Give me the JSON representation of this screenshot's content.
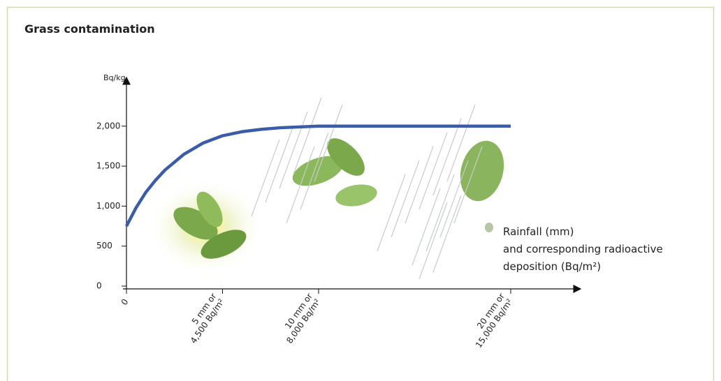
{
  "chart_data": {
    "type": "line",
    "title": "Grass contamination",
    "y_label": "Bq/kg",
    "x_label": [
      "Rainfall (mm)",
      "and corresponding radioactive",
      "deposition (Bq/m²)"
    ],
    "x": [
      0,
      0.5,
      1,
      1.5,
      2,
      3,
      4,
      5,
      6,
      7,
      8,
      10,
      20
    ],
    "series": [
      {
        "name": "Grass contamination",
        "color": "#3b5ca8",
        "values": [
          750,
          980,
          1170,
          1320,
          1450,
          1650,
          1790,
          1880,
          1930,
          1960,
          1980,
          2000,
          2000
        ]
      }
    ],
    "xlim": [
      0,
      23.6
    ],
    "xticks": [
      0,
      {
        "value": 5,
        "label": "5 mm or\n4,500 Bq/m²"
      },
      {
        "value": 10,
        "label": "10 mm or\n8,000 Bq/m²"
      },
      {
        "value": 20,
        "label": "20 mm or\n15,000 Bq/m²"
      }
    ],
    "ylim": [
      0,
      2600
    ],
    "yticks": [
      0,
      500,
      {
        "value": 1000,
        "label": "1,000"
      },
      {
        "value": 1500,
        "label": "1,500"
      },
      {
        "value": 2000,
        "label": "2,000"
      }
    ],
    "grid": false
  }
}
